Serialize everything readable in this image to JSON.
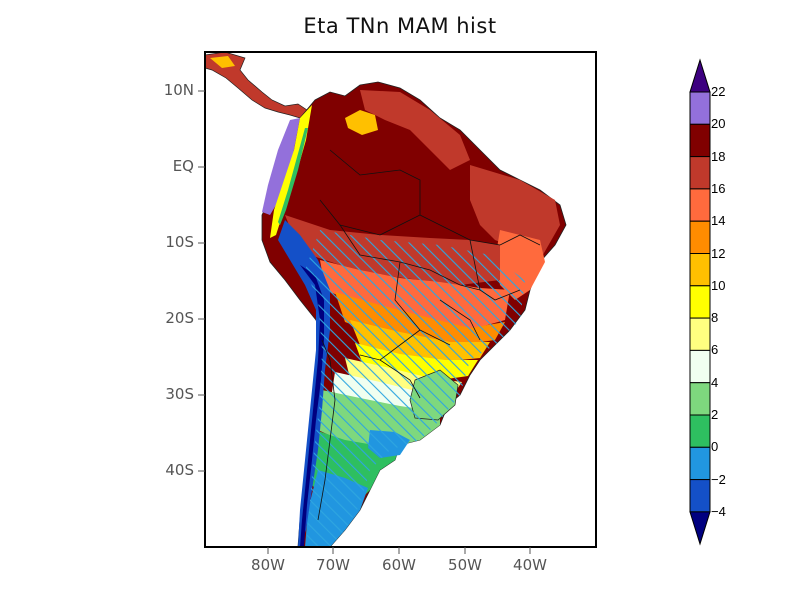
{
  "title": "Eta TNn MAM hist",
  "map": {
    "lat_ticks": [
      "10N",
      "EQ",
      "10S",
      "20S",
      "30S",
      "40S"
    ],
    "lon_ticks": [
      "80W",
      "70W",
      "60W",
      "50W",
      "40W"
    ],
    "lat_values": [
      10,
      0,
      -10,
      -20,
      -30,
      -40
    ],
    "lon_values": [
      -80,
      -70,
      -60,
      -50,
      -40
    ],
    "lon_range": [
      -90,
      -30
    ],
    "lat_range": [
      -50,
      14
    ],
    "hatching_color": "#2ea6e0",
    "hatching_note_region": "central and southern South America"
  },
  "colorbar": {
    "labels": [
      "22",
      "20",
      "18",
      "16",
      "14",
      "12",
      "10",
      "8",
      "6",
      "4",
      "2",
      "0",
      "-2",
      "-4"
    ],
    "display_labels": [
      "22",
      "20",
      "18",
      "16",
      "14",
      "12",
      "10",
      "8",
      "6",
      "4",
      "2",
      "0",
      "−2",
      "−4"
    ],
    "colors_top_to_bottom": [
      "#3d0080",
      "#9370db",
      "#800000",
      "#c0392b",
      "#ff6a3d",
      "#ff8c00",
      "#ffc000",
      "#ffff00",
      "#ffff80",
      "#f0fff0",
      "#7ed87e",
      "#2ebf60",
      "#2196e0",
      "#1450c8",
      "#000080"
    ]
  }
}
